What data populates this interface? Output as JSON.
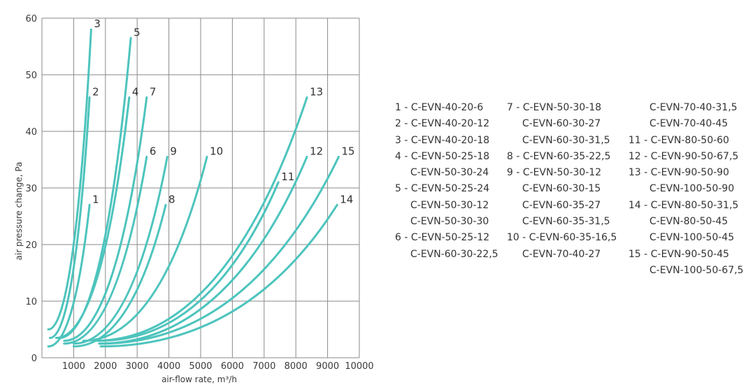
{
  "chart_data": {
    "type": "line",
    "xlabel": "air-flow rate, m³/h",
    "ylabel": "air pressure change, Pa",
    "xlim": [
      0,
      10000
    ],
    "ylim": [
      0,
      60
    ],
    "x_ticks": [
      "0",
      "1000",
      "2000",
      "3000",
      "4000",
      "5000",
      "6000",
      "7000",
      "8000",
      "9000",
      "10000"
    ],
    "y_ticks": [
      "0",
      "10",
      "20",
      "30",
      "40",
      "50",
      "60"
    ],
    "grid": true,
    "line_color": "#4dc4bd",
    "series": [
      {
        "name": "1",
        "points": [
          [
            200,
            2.0
          ],
          [
            1500,
            27.0
          ]
        ]
      },
      {
        "name": "2",
        "points": [
          [
            250,
            3.5
          ],
          [
            1500,
            46.0
          ]
        ]
      },
      {
        "name": "3",
        "points": [
          [
            200,
            5.0
          ],
          [
            1550,
            58.0
          ]
        ]
      },
      {
        "name": "4",
        "points": [
          [
            450,
            3.5
          ],
          [
            2750,
            46.0
          ]
        ]
      },
      {
        "name": "5",
        "points": [
          [
            550,
            3.5
          ],
          [
            2800,
            56.5
          ]
        ]
      },
      {
        "name": "6",
        "points": [
          [
            700,
            2.5
          ],
          [
            3300,
            35.5
          ]
        ]
      },
      {
        "name": "7",
        "points": [
          [
            700,
            3.0
          ],
          [
            3300,
            46.0
          ]
        ]
      },
      {
        "name": "8",
        "points": [
          [
            1000,
            2.0
          ],
          [
            3900,
            27.0
          ]
        ]
      },
      {
        "name": "9",
        "points": [
          [
            1000,
            2.5
          ],
          [
            3950,
            35.5
          ]
        ]
      },
      {
        "name": "10",
        "points": [
          [
            1300,
            3.0
          ],
          [
            5200,
            35.5
          ]
        ]
      },
      {
        "name": "11",
        "points": [
          [
            1800,
            3.0
          ],
          [
            7450,
            31.0
          ]
        ]
      },
      {
        "name": "12",
        "points": [
          [
            1800,
            2.5
          ],
          [
            8350,
            35.5
          ]
        ]
      },
      {
        "name": "13",
        "points": [
          [
            1650,
            3.0
          ],
          [
            8350,
            46.0
          ]
        ]
      },
      {
        "name": "14",
        "points": [
          [
            1850,
            2.0
          ],
          [
            9300,
            27.0
          ]
        ]
      },
      {
        "name": "15",
        "points": [
          [
            1850,
            2.5
          ],
          [
            9350,
            35.5
          ]
        ]
      }
    ]
  },
  "legend": {
    "col1": [
      "1 - C-EVN-40-20-6",
      "2 - C-EVN-40-20-12",
      "3 - C-EVN-40-20-18",
      "4 - C-EVN-50-25-18",
      "C-EVN-50-30-24",
      "5 - C-EVN-50-25-24",
      "C-EVN-50-30-12",
      "C-EVN-50-30-30",
      "6 - C-EVN-50-25-12",
      "C-EVN-60-30-22,5"
    ],
    "col2": [
      "7 - C-EVN-50-30-18",
      "C-EVN-60-30-27",
      "C-EVN-60-30-31,5",
      "8 - C-EVN-60-35-22,5",
      "9 - C-EVN-50-30-12",
      "C-EVN-60-30-15",
      "C-EVN-60-35-27",
      "C-EVN-60-35-31,5",
      "10 - C-EVN-60-35-16,5",
      "C-EVN-70-40-27"
    ],
    "col3": [
      "C-EVN-70-40-31,5",
      "C-EVN-70-40-45",
      "11 - C-EVN-80-50-60",
      "12 - C-EVN-90-50-67,5",
      "13 - C-EVN-90-50-90",
      "C-EVN-100-50-90",
      "14 - C-EVN-80-50-31,5",
      "C-EVN-80-50-45",
      "C-EVN-100-50-45",
      "15 - C-EVN-90-50-45",
      "C-EVN-100-50-67,5"
    ]
  }
}
